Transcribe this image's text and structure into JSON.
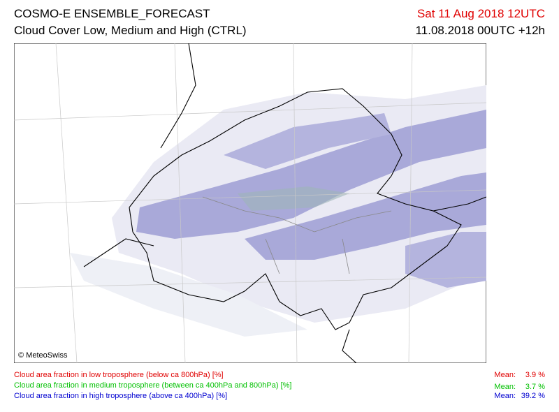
{
  "header": {
    "title": "COSMO-E ENSEMBLE_FORECAST",
    "subtitle": "Cloud Cover Low, Medium and High (CTRL)",
    "valid_time": "Sat 11 Aug 2018 12UTC",
    "init_time": "11.08.2018 00UTC +12h"
  },
  "map": {
    "credit": "© MeteoSwiss"
  },
  "legend": {
    "items": [
      {
        "label": "Cloud area fraction in low troposphere (below ca 800hPa) [%]",
        "mean_caption": "Mean:",
        "mean": "3.9 %"
      },
      {
        "label": "Cloud area fraction in medium troposphere (between ca 400hPa and 800hPa) [%]",
        "mean_caption": "Mean:",
        "mean": "3.7 %"
      },
      {
        "label": "Cloud area fraction in high troposphere (above ca 400hPa) [%]",
        "mean_caption": "Mean:",
        "mean": "39.2 %"
      }
    ]
  }
}
